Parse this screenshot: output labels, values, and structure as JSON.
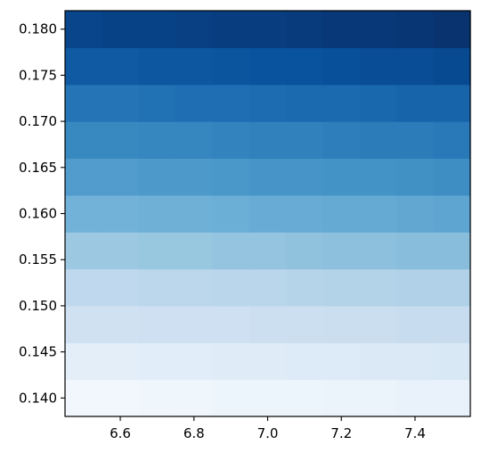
{
  "chart_data": {
    "type": "heatmap",
    "title": "",
    "xlabel": "",
    "ylabel": "",
    "xlim": [
      6.45,
      7.55
    ],
    "ylim": [
      0.138,
      0.182
    ],
    "x_ticks": [
      6.6,
      6.8,
      7.0,
      7.2,
      7.4
    ],
    "x_tick_labels": [
      "6.6",
      "6.8",
      "7.0",
      "7.2",
      "7.4"
    ],
    "y_ticks": [
      0.14,
      0.145,
      0.15,
      0.155,
      0.16,
      0.165,
      0.17,
      0.175,
      0.18
    ],
    "y_tick_labels": [
      "0.140",
      "0.145",
      "0.150",
      "0.155",
      "0.160",
      "0.165",
      "0.170",
      "0.175",
      "0.180"
    ],
    "x_edges": [
      6.45,
      6.55,
      6.65,
      6.75,
      6.85,
      6.95,
      7.05,
      7.15,
      7.25,
      7.35,
      7.45,
      7.55
    ],
    "y_edges": [
      0.138,
      0.142,
      0.146,
      0.15,
      0.154,
      0.158,
      0.162,
      0.166,
      0.17,
      0.174,
      0.178,
      0.182
    ],
    "colormap": "Blues",
    "values": [
      [
        0.03,
        0.03,
        0.04,
        0.04,
        0.05,
        0.05,
        0.05,
        0.06,
        0.06,
        0.07,
        0.07
      ],
      [
        0.1,
        0.1,
        0.11,
        0.11,
        0.12,
        0.12,
        0.13,
        0.13,
        0.14,
        0.14,
        0.15
      ],
      [
        0.2,
        0.2,
        0.21,
        0.21,
        0.21,
        0.22,
        0.22,
        0.23,
        0.23,
        0.24,
        0.24
      ],
      [
        0.27,
        0.27,
        0.28,
        0.28,
        0.29,
        0.29,
        0.3,
        0.31,
        0.31,
        0.32,
        0.32
      ],
      [
        0.38,
        0.38,
        0.39,
        0.39,
        0.4,
        0.4,
        0.41,
        0.42,
        0.42,
        0.43,
        0.43
      ],
      [
        0.48,
        0.48,
        0.49,
        0.49,
        0.5,
        0.51,
        0.51,
        0.52,
        0.52,
        0.53,
        0.54
      ],
      [
        0.58,
        0.58,
        0.59,
        0.59,
        0.6,
        0.61,
        0.61,
        0.62,
        0.62,
        0.63,
        0.64
      ],
      [
        0.66,
        0.66,
        0.67,
        0.67,
        0.68,
        0.69,
        0.69,
        0.7,
        0.71,
        0.71,
        0.72
      ],
      [
        0.74,
        0.74,
        0.75,
        0.76,
        0.76,
        0.77,
        0.78,
        0.78,
        0.79,
        0.8,
        0.8
      ],
      [
        0.84,
        0.84,
        0.85,
        0.85,
        0.86,
        0.87,
        0.87,
        0.88,
        0.89,
        0.89,
        0.9
      ],
      [
        0.92,
        0.93,
        0.93,
        0.94,
        0.95,
        0.95,
        0.96,
        0.97,
        0.97,
        0.98,
        0.99
      ]
    ],
    "grid": false,
    "legend": "none"
  }
}
